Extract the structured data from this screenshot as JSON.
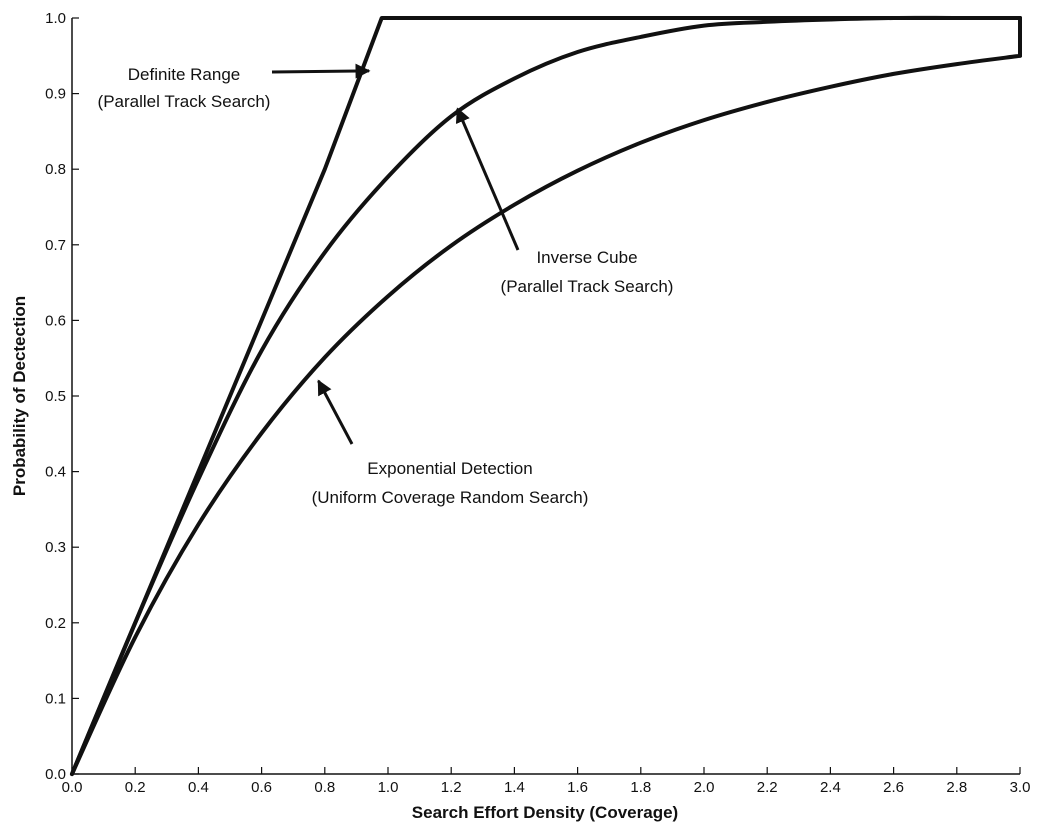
{
  "chart_data": {
    "type": "line",
    "xlabel": "Search Effort Density (Coverage)",
    "ylabel": "Probability of Dectection",
    "xlim": [
      0.0,
      3.0
    ],
    "ylim": [
      0.0,
      1.0
    ],
    "x_ticks": [
      "0.0",
      "0.2",
      "0.4",
      "0.6",
      "0.8",
      "1.0",
      "1.2",
      "1.4",
      "1.6",
      "1.8",
      "2.0",
      "2.2",
      "2.4",
      "2.6",
      "2.8",
      "3.0"
    ],
    "y_ticks": [
      "0.0",
      "0.1",
      "0.2",
      "0.3",
      "0.4",
      "0.5",
      "0.6",
      "0.7",
      "0.8",
      "0.9",
      "1.0"
    ],
    "grid": false,
    "series": [
      {
        "name": "Definite Range (Parallel Track Search)",
        "x": [
          0.0,
          0.2,
          0.4,
          0.6,
          0.8,
          0.98,
          1.0,
          1.5,
          2.0,
          2.5,
          3.0
        ],
        "y": [
          0.0,
          0.2,
          0.4,
          0.6,
          0.8,
          1.0,
          1.0,
          1.0,
          1.0,
          1.0,
          1.0
        ]
      },
      {
        "name": "Inverse Cube (Parallel Track Search)",
        "x": [
          0.0,
          0.2,
          0.4,
          0.6,
          0.8,
          1.0,
          1.2,
          1.4,
          1.6,
          1.8,
          2.0,
          2.2,
          2.4,
          2.6,
          2.8,
          3.0
        ],
        "y": [
          0.0,
          0.2,
          0.39,
          0.56,
          0.69,
          0.79,
          0.87,
          0.92,
          0.955,
          0.975,
          0.99,
          0.995,
          0.998,
          1.0,
          1.0,
          1.0
        ]
      },
      {
        "name": "Exponential Detection (Uniform Coverage Random Search)",
        "x": [
          0.0,
          0.2,
          0.4,
          0.6,
          0.8,
          1.0,
          1.2,
          1.4,
          1.6,
          1.8,
          2.0,
          2.2,
          2.4,
          2.6,
          2.8,
          3.0
        ],
        "y": [
          0.0,
          0.181,
          0.33,
          0.451,
          0.551,
          0.632,
          0.699,
          0.753,
          0.798,
          0.835,
          0.865,
          0.889,
          0.909,
          0.926,
          0.939,
          0.95
        ]
      }
    ],
    "annotations": [
      {
        "id": "definite",
        "lines": [
          "Definite Range",
          "(Parallel Track Search)"
        ],
        "target": [
          0.94,
          0.93
        ]
      },
      {
        "id": "inverse",
        "lines": [
          "Inverse Cube",
          "(Parallel Track Search)"
        ],
        "target": [
          1.22,
          0.88
        ]
      },
      {
        "id": "exponential",
        "lines": [
          "Exponential Detection",
          "(Uniform Coverage Random Search)"
        ],
        "target": [
          0.78,
          0.52
        ]
      }
    ]
  }
}
